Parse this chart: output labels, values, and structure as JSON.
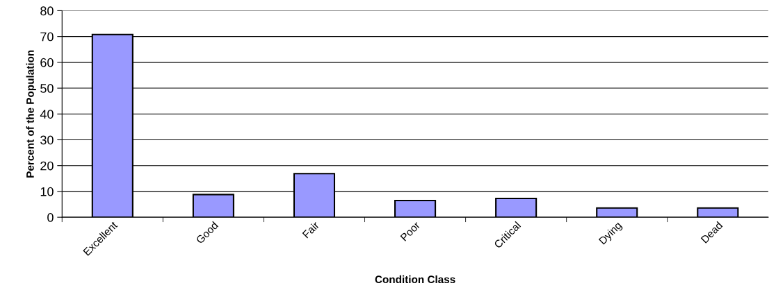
{
  "chart_data": {
    "type": "bar",
    "xlabel": "Condition Class",
    "ylabel": "Percent of the Population",
    "categories": [
      "Excellent",
      "Good",
      "Fair",
      "Poor",
      "Critical",
      "Dying",
      "Dead"
    ],
    "values": [
      70.8,
      8.8,
      16.9,
      6.5,
      7.3,
      3.6,
      3.6
    ],
    "color": "#9999ff",
    "ylim": [
      0,
      80
    ],
    "yticks": [
      0,
      10,
      20,
      30,
      40,
      50,
      60,
      70,
      80
    ],
    "grid": "y"
  }
}
